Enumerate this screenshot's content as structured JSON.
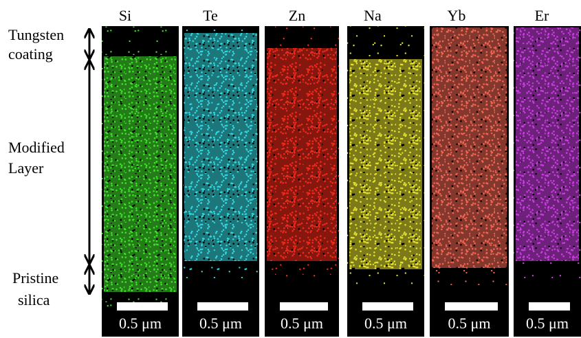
{
  "panels": [
    {
      "element": "Si",
      "scale_label": "0.5 μm"
    },
    {
      "element": "Te",
      "scale_label": "0.5 μm"
    },
    {
      "element": "Zn",
      "scale_label": "0.5 μm"
    },
    {
      "element": "Na",
      "scale_label": "0.5 μm"
    },
    {
      "element": "Yb",
      "scale_label": "0.5 μm"
    },
    {
      "element": "Er",
      "scale_label": "0.5 μm"
    }
  ],
  "regions": [
    {
      "lines": [
        "Tungsten",
        "coating"
      ]
    },
    {
      "lines": [
        "Modified",
        "Layer"
      ]
    },
    {
      "lines": [
        "Pristine",
        "silica"
      ]
    }
  ]
}
